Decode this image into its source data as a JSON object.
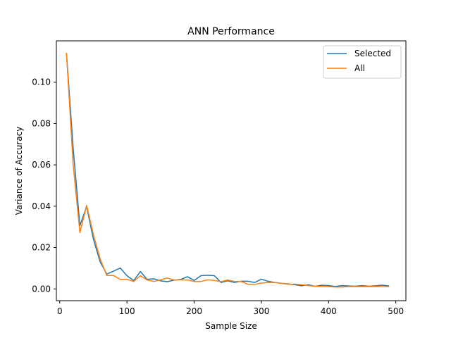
{
  "chart_data": {
    "type": "line",
    "title": "ANN Performance",
    "xlabel": "Sample Size",
    "ylabel": "Variance of Accuracy",
    "xlim": [
      -5,
      515
    ],
    "ylim": [
      -0.0057,
      0.12
    ],
    "xticks": [
      0,
      100,
      200,
      300,
      400,
      500
    ],
    "yticks": [
      0.0,
      0.02,
      0.04,
      0.06,
      0.08,
      0.1
    ],
    "xtick_labels": [
      "0",
      "100",
      "200",
      "300",
      "400",
      "500"
    ],
    "ytick_labels": [
      "0.00",
      "0.02",
      "0.04",
      "0.06",
      "0.08",
      "0.10"
    ],
    "grid": false,
    "legend_position": "top-right",
    "x": [
      10,
      20,
      30,
      40,
      50,
      60,
      70,
      80,
      90,
      100,
      110,
      120,
      130,
      140,
      150,
      160,
      170,
      180,
      190,
      200,
      210,
      220,
      230,
      240,
      250,
      260,
      270,
      280,
      290,
      300,
      310,
      320,
      330,
      340,
      350,
      360,
      370,
      380,
      390,
      400,
      410,
      420,
      430,
      440,
      450,
      460,
      470,
      480,
      490
    ],
    "series": [
      {
        "name": "Selected",
        "color": "#1f77b4",
        "values": [
          0.1142,
          0.068,
          0.0306,
          0.0398,
          0.0242,
          0.0131,
          0.0072,
          0.0086,
          0.0101,
          0.0064,
          0.004,
          0.0084,
          0.0046,
          0.0049,
          0.0039,
          0.0035,
          0.0042,
          0.0046,
          0.0059,
          0.0041,
          0.0064,
          0.0066,
          0.0064,
          0.0031,
          0.0039,
          0.0031,
          0.0037,
          0.0037,
          0.0031,
          0.0047,
          0.0037,
          0.0031,
          0.0027,
          0.0024,
          0.002,
          0.0015,
          0.002,
          0.0012,
          0.0018,
          0.0016,
          0.0012,
          0.0016,
          0.0014,
          0.0013,
          0.0016,
          0.0013,
          0.0015,
          0.0018,
          0.0014
        ]
      },
      {
        "name": "All",
        "color": "#ff7f0e",
        "values": [
          0.1142,
          0.06,
          0.0272,
          0.0404,
          0.0264,
          0.0146,
          0.0065,
          0.0065,
          0.0046,
          0.0046,
          0.0036,
          0.0064,
          0.0043,
          0.0036,
          0.0044,
          0.0053,
          0.0043,
          0.0044,
          0.0043,
          0.0036,
          0.0036,
          0.0044,
          0.0041,
          0.0035,
          0.0043,
          0.0036,
          0.0036,
          0.0022,
          0.0022,
          0.0028,
          0.0031,
          0.0031,
          0.0027,
          0.0022,
          0.0023,
          0.002,
          0.0016,
          0.0013,
          0.0011,
          0.0011,
          0.0009,
          0.0009,
          0.0011,
          0.0011,
          0.0011,
          0.0011,
          0.0011,
          0.0011,
          0.0011
        ]
      }
    ]
  }
}
